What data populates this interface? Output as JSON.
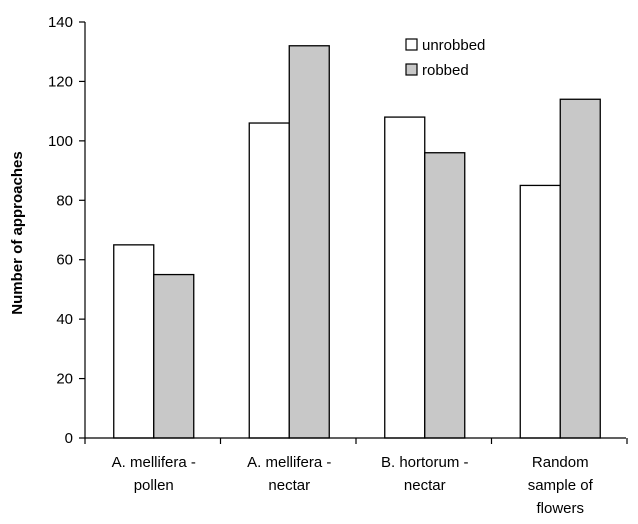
{
  "chart_data": {
    "type": "bar",
    "categories": [
      [
        "A. mellifera -",
        "pollen"
      ],
      [
        "A. mellifera -",
        "nectar"
      ],
      [
        "B. hortorum -",
        "nectar"
      ],
      [
        "Random",
        "sample of",
        "flowers"
      ]
    ],
    "series": [
      {
        "name": "unrobbed",
        "color": "#ffffff",
        "values": [
          65,
          106,
          108,
          85
        ]
      },
      {
        "name": "robbed",
        "color": "#c8c8c8",
        "values": [
          55,
          132,
          96,
          114
        ]
      }
    ],
    "xlabel": "",
    "ylabel": "Number of approaches",
    "ylim": [
      0,
      140
    ],
    "yticks": [
      0,
      20,
      40,
      60,
      80,
      100,
      120,
      140
    ],
    "legend_position": "top-right",
    "grid": false
  }
}
